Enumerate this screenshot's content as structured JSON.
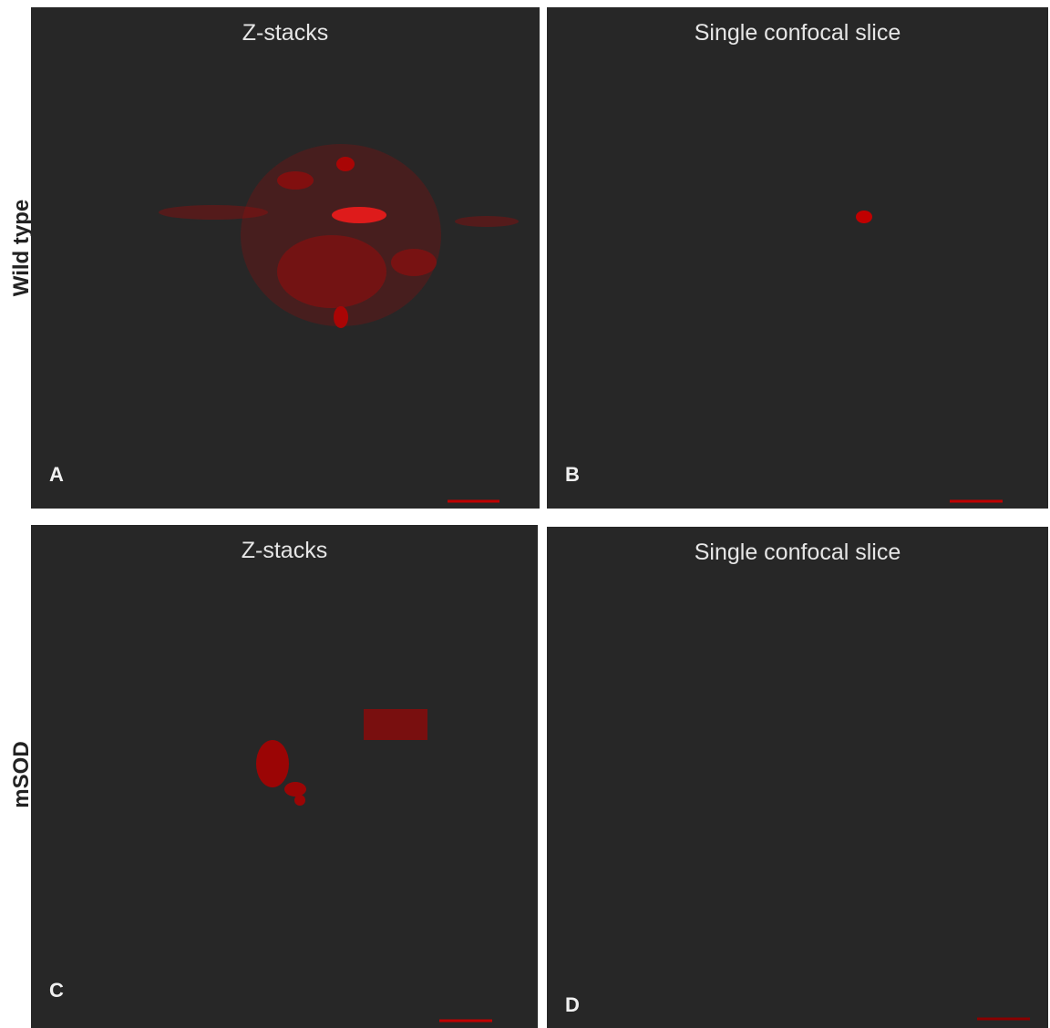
{
  "rows": [
    {
      "label": "Wild type",
      "panels": [
        {
          "title": "Z-stacks",
          "letter": "A"
        },
        {
          "title": "Single confocal slice",
          "letter": "B"
        }
      ]
    },
    {
      "label": "mSOD",
      "panels": [
        {
          "title": "Z-stacks",
          "letter": "C"
        },
        {
          "title": "Single confocal slice",
          "letter": "D"
        }
      ]
    }
  ]
}
